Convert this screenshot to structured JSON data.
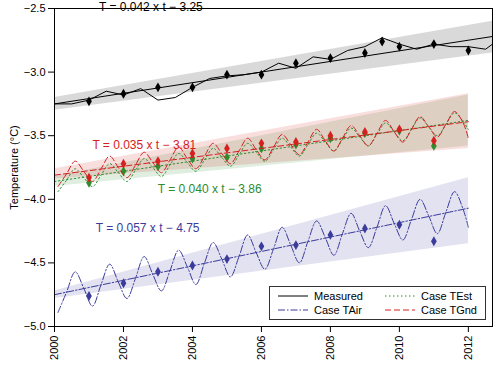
{
  "chart_data": {
    "type": "line",
    "y_label": "Temperature (°C)",
    "xlim": [
      2000,
      2012.7
    ],
    "xticks": [
      2000,
      2002,
      2004,
      2006,
      2008,
      2010,
      2012
    ],
    "ylim": [
      -5,
      -2.5
    ],
    "yticks": [
      {
        "value": -5,
        "label": "−5.0"
      },
      {
        "value": -4.5,
        "label": "−4.5"
      },
      {
        "value": -4,
        "label": "−4.0"
      },
      {
        "value": -3.5,
        "label": "−3.5"
      },
      {
        "value": -3,
        "label": "−3.0"
      },
      {
        "value": -2.5,
        "label": "−2.5"
      }
    ],
    "grid": false,
    "legend": "lower right",
    "series": [
      {
        "name": "Measured",
        "color": "#000000",
        "line_style": "solid",
        "marker": "diamond",
        "equation": "T = 0.042 x t − 3.25",
        "x": [
          2000,
          2000.5,
          2001,
          2001.5,
          2002,
          2002.5,
          2003,
          2003.5,
          2004,
          2004.5,
          2005,
          2005.5,
          2006,
          2006.5,
          2007,
          2007.5,
          2008,
          2008.5,
          2009,
          2009.5,
          2010,
          2010.5,
          2011,
          2011.5,
          2012,
          2012.5,
          2012.7
        ],
        "values": [
          -3.25,
          -3.25,
          -3.22,
          -3.15,
          -3.18,
          -3.13,
          -3.22,
          -3.2,
          -3.12,
          -3.05,
          -3.03,
          -3.02,
          -3.0,
          -2.93,
          -2.97,
          -2.88,
          -2.9,
          -2.83,
          -2.8,
          -2.73,
          -2.78,
          -2.82,
          -2.78,
          -2.8,
          -2.8,
          -2.82,
          -2.78
        ],
        "points": {
          "x": [
            2001,
            2002,
            2003,
            2004,
            2005,
            2006,
            2007,
            2008,
            2009,
            2009.5,
            2010,
            2011,
            2012
          ],
          "values": [
            -3.23,
            -3.17,
            -3.12,
            -3.12,
            -3.02,
            -3.02,
            -2.93,
            -2.89,
            -2.85,
            -2.76,
            -2.8,
            -2.78,
            -2.83
          ]
        },
        "trend": {
          "x": [
            2000,
            2012.7
          ],
          "values": [
            -3.25,
            -2.72
          ]
        },
        "band": {
          "x": [
            2000,
            2012.7
          ],
          "lower": [
            -3.3,
            -2.85
          ],
          "upper": [
            -3.2,
            -2.6
          ]
        }
      },
      {
        "name": "Case TAir",
        "color": "#3b3b9c",
        "line_style": "dashdot",
        "marker": "diamond",
        "equation": "T = 0.057 x t − 4.75",
        "x": [
          2000.1,
          2000.35,
          2000.6,
          2000.85,
          2001.1,
          2001.35,
          2001.6,
          2001.85,
          2002.1,
          2002.35,
          2002.6,
          2002.85,
          2003.1,
          2003.35,
          2003.6,
          2003.85,
          2004.1,
          2004.35,
          2004.6,
          2004.85,
          2005.1,
          2005.35,
          2005.6,
          2005.85,
          2006.1,
          2006.35,
          2006.6,
          2006.85,
          2007.1,
          2007.35,
          2007.6,
          2007.85,
          2008.1,
          2008.35,
          2008.6,
          2008.85,
          2009.1,
          2009.35,
          2009.6,
          2009.85,
          2010.1,
          2010.35,
          2010.6,
          2010.85,
          2011.1,
          2011.35,
          2011.6,
          2011.85,
          2012.0
        ],
        "values": [
          -4.89,
          -4.73,
          -4.57,
          -4.7,
          -4.84,
          -4.67,
          -4.51,
          -4.65,
          -4.78,
          -4.62,
          -4.45,
          -4.59,
          -4.72,
          -4.56,
          -4.4,
          -4.53,
          -4.67,
          -4.5,
          -4.34,
          -4.47,
          -4.61,
          -4.45,
          -4.28,
          -4.42,
          -4.55,
          -4.39,
          -4.22,
          -4.36,
          -4.5,
          -4.33,
          -4.17,
          -4.3,
          -4.44,
          -4.27,
          -4.11,
          -4.25,
          -4.38,
          -4.22,
          -4.05,
          -4.19,
          -4.32,
          -4.16,
          -4.0,
          -4.13,
          -4.27,
          -4.1,
          -3.94,
          -4.08,
          -4.22
        ],
        "points": {
          "x": [
            2001,
            2002,
            2003,
            2004,
            2005,
            2006,
            2007,
            2008,
            2009,
            2010,
            2011
          ],
          "values": [
            -4.76,
            -4.66,
            -4.57,
            -4.52,
            -4.47,
            -4.37,
            -4.36,
            -4.28,
            -4.23,
            -4.2,
            -4.33
          ]
        },
        "trend": {
          "x": [
            2000,
            2012
          ],
          "values": [
            -4.75,
            -4.07
          ]
        },
        "band": {
          "x": [
            2000,
            2012
          ],
          "lower": [
            -4.78,
            -4.35
          ],
          "upper": [
            -4.72,
            -3.83
          ]
        }
      },
      {
        "name": "Case TEst",
        "color": "#2e8b2e",
        "line_style": "dotted",
        "marker": "diamond",
        "equation": "T = 0.040 x t − 3.86",
        "x": [
          2000.1,
          2000.35,
          2000.6,
          2000.85,
          2001.1,
          2001.35,
          2001.6,
          2001.85,
          2002.1,
          2002.35,
          2002.6,
          2002.85,
          2003.1,
          2003.35,
          2003.6,
          2003.85,
          2004.1,
          2004.35,
          2004.6,
          2004.85,
          2005.1,
          2005.35,
          2005.6,
          2005.85,
          2006.1,
          2006.35,
          2006.6,
          2006.85,
          2007.1,
          2007.35,
          2007.6,
          2007.85,
          2008.1,
          2008.35,
          2008.6,
          2008.85,
          2009.1,
          2009.35,
          2009.6,
          2009.85,
          2010.1,
          2010.35,
          2010.6,
          2010.85,
          2011.1,
          2011.35,
          2011.6,
          2011.85,
          2012.0
        ],
        "values": [
          -3.94,
          -3.85,
          -3.76,
          -3.83,
          -3.9,
          -3.81,
          -3.72,
          -3.79,
          -3.86,
          -3.77,
          -3.68,
          -3.75,
          -3.82,
          -3.73,
          -3.64,
          -3.71,
          -3.78,
          -3.69,
          -3.6,
          -3.67,
          -3.74,
          -3.65,
          -3.56,
          -3.63,
          -3.7,
          -3.61,
          -3.52,
          -3.59,
          -3.66,
          -3.57,
          -3.48,
          -3.55,
          -3.62,
          -3.53,
          -3.44,
          -3.51,
          -3.58,
          -3.49,
          -3.4,
          -3.47,
          -3.54,
          -3.45,
          -3.36,
          -3.43,
          -3.5,
          -3.41,
          -3.32,
          -3.39,
          -3.45
        ],
        "points": {
          "x": [
            2001,
            2002,
            2003,
            2004,
            2005,
            2006,
            2007,
            2008,
            2009,
            2010,
            2011
          ],
          "values": [
            -3.87,
            -3.78,
            -3.74,
            -3.68,
            -3.67,
            -3.6,
            -3.57,
            -3.52,
            -3.48,
            -3.46,
            -3.58
          ]
        },
        "trend": {
          "x": [
            2000,
            2012
          ],
          "values": [
            -3.86,
            -3.38
          ]
        },
        "band": {
          "x": [
            2000,
            2012
          ],
          "lower": [
            -3.9,
            -3.58
          ],
          "upper": [
            -3.82,
            -3.18
          ]
        }
      },
      {
        "name": "Case TGnd",
        "color": "#d62020",
        "line_style": "dashed",
        "marker": "diamond",
        "equation": "T = 0.035 x t − 3.81",
        "x": [
          2000.1,
          2000.35,
          2000.6,
          2000.85,
          2001.1,
          2001.35,
          2001.6,
          2001.85,
          2002.1,
          2002.35,
          2002.6,
          2002.85,
          2003.1,
          2003.35,
          2003.6,
          2003.85,
          2004.1,
          2004.35,
          2004.6,
          2004.85,
          2005.1,
          2005.35,
          2005.6,
          2005.85,
          2006.1,
          2006.35,
          2006.6,
          2006.85,
          2007.1,
          2007.35,
          2007.6,
          2007.85,
          2008.1,
          2008.35,
          2008.6,
          2008.85,
          2009.1,
          2009.35,
          2009.6,
          2009.85,
          2010.1,
          2010.35,
          2010.6,
          2010.85,
          2011.1,
          2011.35,
          2011.6,
          2011.85,
          2012.0
        ],
        "values": [
          -3.9,
          -3.8,
          -3.7,
          -3.78,
          -3.86,
          -3.76,
          -3.66,
          -3.75,
          -3.83,
          -3.73,
          -3.63,
          -3.71,
          -3.79,
          -3.69,
          -3.59,
          -3.68,
          -3.76,
          -3.66,
          -3.56,
          -3.64,
          -3.72,
          -3.62,
          -3.52,
          -3.61,
          -3.69,
          -3.59,
          -3.49,
          -3.57,
          -3.65,
          -3.55,
          -3.45,
          -3.54,
          -3.62,
          -3.52,
          -3.42,
          -3.5,
          -3.58,
          -3.48,
          -3.38,
          -3.47,
          -3.55,
          -3.45,
          -3.35,
          -3.43,
          -3.51,
          -3.41,
          -3.31,
          -3.4,
          -3.52
        ],
        "points": {
          "x": [
            2001,
            2002,
            2003,
            2004,
            2005,
            2006,
            2007,
            2008,
            2009,
            2010,
            2011
          ],
          "values": [
            -3.83,
            -3.72,
            -3.7,
            -3.64,
            -3.6,
            -3.56,
            -3.55,
            -3.5,
            -3.47,
            -3.45,
            -3.54
          ]
        },
        "trend": {
          "x": [
            2000,
            2012
          ],
          "values": [
            -3.81,
            -3.39
          ]
        },
        "band": {
          "x": [
            2000,
            2012
          ],
          "lower": [
            -3.84,
            -3.6
          ],
          "upper": [
            -3.76,
            -3.17
          ]
        }
      }
    ]
  }
}
